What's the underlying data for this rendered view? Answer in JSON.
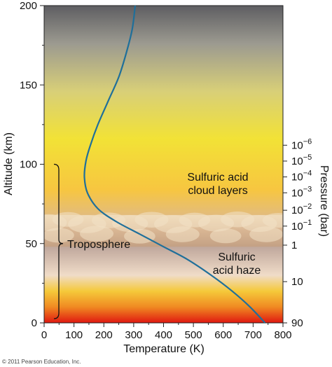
{
  "chart_data": {
    "type": "line",
    "xlabel": "Temperature (K)",
    "ylabel": "Altitude (km)",
    "y2label": "Pressure (bar)",
    "xlim": [
      0,
      800
    ],
    "ylim": [
      0,
      200
    ],
    "x_ticks": [
      "0",
      "100",
      "200",
      "300",
      "400",
      "500",
      "600",
      "700",
      "800"
    ],
    "y_ticks": [
      "0",
      "50",
      "100",
      "150",
      "200"
    ],
    "pressure_ticks": [
      {
        "altitude": 0,
        "base": "90",
        "exp": ""
      },
      {
        "altitude": 26,
        "base": "10",
        "exp": ""
      },
      {
        "altitude": 49,
        "base": "1",
        "exp": ""
      },
      {
        "altitude": 61,
        "base": "10",
        "exp": "−1"
      },
      {
        "altitude": 71,
        "base": "10",
        "exp": "−2"
      },
      {
        "altitude": 82,
        "base": "10",
        "exp": "−3"
      },
      {
        "altitude": 92,
        "base": "10",
        "exp": "−4"
      },
      {
        "altitude": 102,
        "base": "10",
        "exp": "−5"
      },
      {
        "altitude": 112,
        "base": "10",
        "exp": "−6"
      }
    ],
    "series": [
      {
        "color": "#1f6f9a",
        "points": [
          [
            740,
            0
          ],
          [
            690,
            10
          ],
          [
            630,
            20
          ],
          [
            560,
            30
          ],
          [
            480,
            40
          ],
          [
            400,
            48
          ],
          [
            320,
            56
          ],
          [
            240,
            64
          ],
          [
            180,
            72
          ],
          [
            145,
            82
          ],
          [
            135,
            92
          ],
          [
            140,
            102
          ],
          [
            155,
            112
          ],
          [
            180,
            125
          ],
          [
            215,
            140
          ],
          [
            250,
            155
          ],
          [
            275,
            170
          ],
          [
            295,
            185
          ],
          [
            305,
            200
          ]
        ]
      }
    ],
    "annotations": {
      "cloud_layers_line1": "Sulfuric acid",
      "cloud_layers_line2": "cloud layers",
      "haze_line1": "Sulfuric",
      "haze_line2": "acid haze",
      "troposphere": "Troposphere"
    },
    "troposphere_range_km": [
      0,
      100
    ],
    "cloud_layer_km": [
      48,
      68
    ],
    "credit": "© 2011 Pearson Education, Inc."
  },
  "colors": {
    "curve": "#1f6f9a",
    "sky_top": "#5f5f62",
    "sky_mid": "#f1e23c",
    "ground": "#e21a12"
  }
}
